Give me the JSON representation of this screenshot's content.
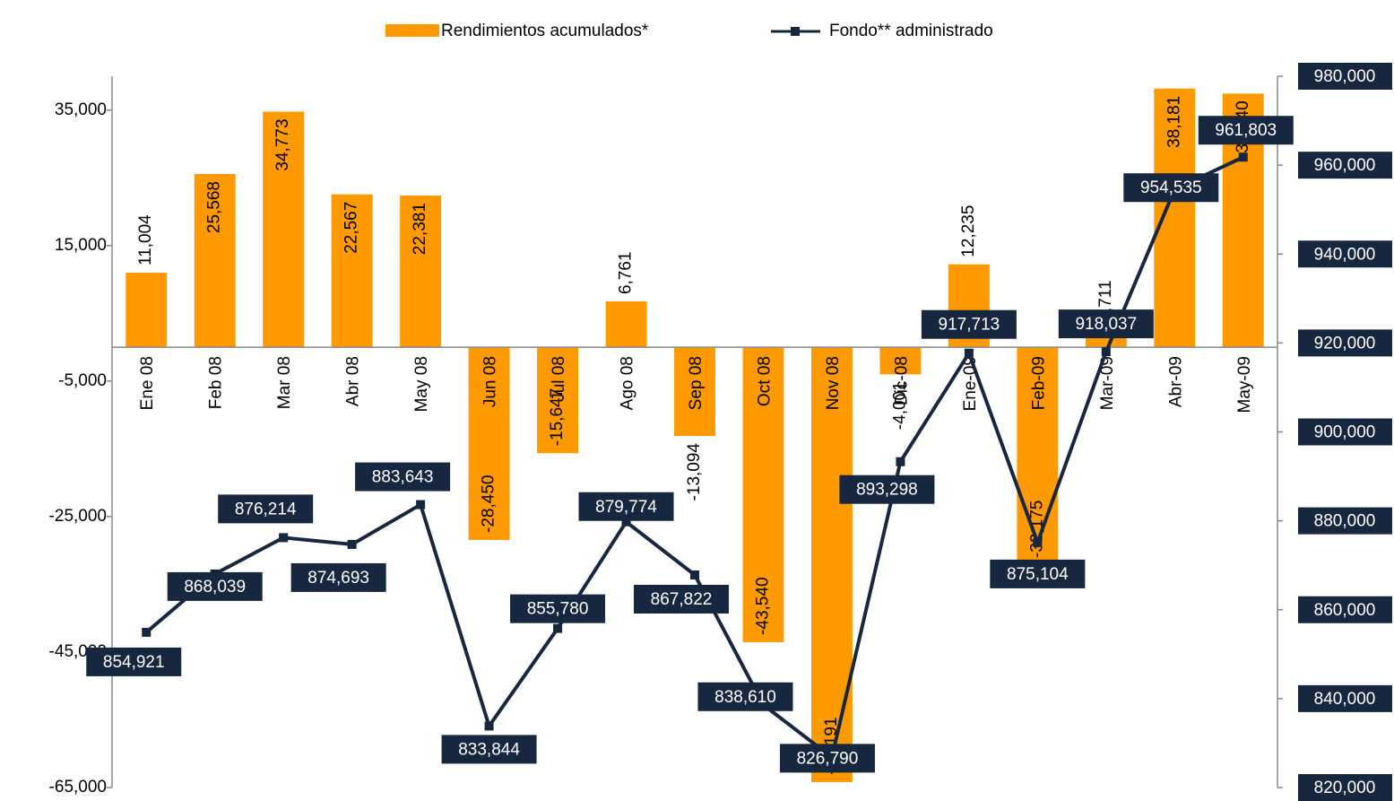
{
  "chart_data": {
    "type": "bar-line",
    "categories": [
      "Ene 08",
      "Feb 08",
      "Mar 08",
      "Abr 08",
      "May 08",
      "Jun 08",
      "Jul 08",
      "Ago 08",
      "Sep 08",
      "Oct 08",
      "Nov 08",
      "Dic-08",
      "Ene-09",
      "Feb-09",
      "Mar-09",
      "Abr-09",
      "May-09"
    ],
    "series": [
      {
        "name": "Rendimientos acumulados*",
        "color": "#ff9900",
        "kind": "bar",
        "values": [
          11004,
          25568,
          34773,
          22567,
          22381,
          -28450,
          -15647,
          6761,
          -13094,
          -43540,
          -64191,
          -4001,
          12235,
          -32175,
          2711,
          38181,
          37440
        ],
        "value_labels": [
          "11,004",
          "25,568",
          "34,773",
          "22,567",
          "22,381",
          "-28,450",
          "-15,647",
          "6,761",
          "-13,094",
          "-43,540",
          "-64,191",
          "-4,001",
          "12,235",
          "-32,175",
          "2,711",
          "38,181",
          "37,440"
        ]
      },
      {
        "name": "Fondo** administrado",
        "color": "#17273f",
        "kind": "line",
        "axis": "y2",
        "values": [
          854921,
          868039,
          876214,
          874693,
          883643,
          833844,
          855780,
          879774,
          867822,
          838610,
          826790,
          893298,
          917713,
          875104,
          918037,
          954535,
          961803
        ],
        "value_labels": [
          "854,921",
          "868,039",
          "876,214",
          "874,693",
          "883,643",
          "833,844",
          "855,780",
          "879,774",
          "867,822",
          "838,610",
          "826,790",
          "893,298",
          "917,713",
          "875,104",
          "918,037",
          "954,535",
          "961,803"
        ]
      }
    ],
    "ylim": [
      -65000,
      40000
    ],
    "yticks": [
      {
        "value": -65000,
        "label": "-65,000"
      },
      {
        "value": -45000,
        "label": "-45,000"
      },
      {
        "value": -25000,
        "label": "-25,000"
      },
      {
        "value": -5000,
        "label": "-5,000"
      },
      {
        "value": 15000,
        "label": "15,000"
      },
      {
        "value": 35000,
        "label": "35,000"
      }
    ],
    "y2lim": [
      820000,
      980000
    ],
    "y2ticks": [
      {
        "value": 820000,
        "label": "820,000"
      },
      {
        "value": 840000,
        "label": "840,000"
      },
      {
        "value": 860000,
        "label": "860,000"
      },
      {
        "value": 880000,
        "label": "880,000"
      },
      {
        "value": 900000,
        "label": "900,000"
      },
      {
        "value": 920000,
        "label": "920,000"
      },
      {
        "value": 940000,
        "label": "940,000"
      },
      {
        "value": 960000,
        "label": "960,000"
      },
      {
        "value": 980000,
        "label": "980,000"
      }
    ],
    "legend": "top"
  }
}
